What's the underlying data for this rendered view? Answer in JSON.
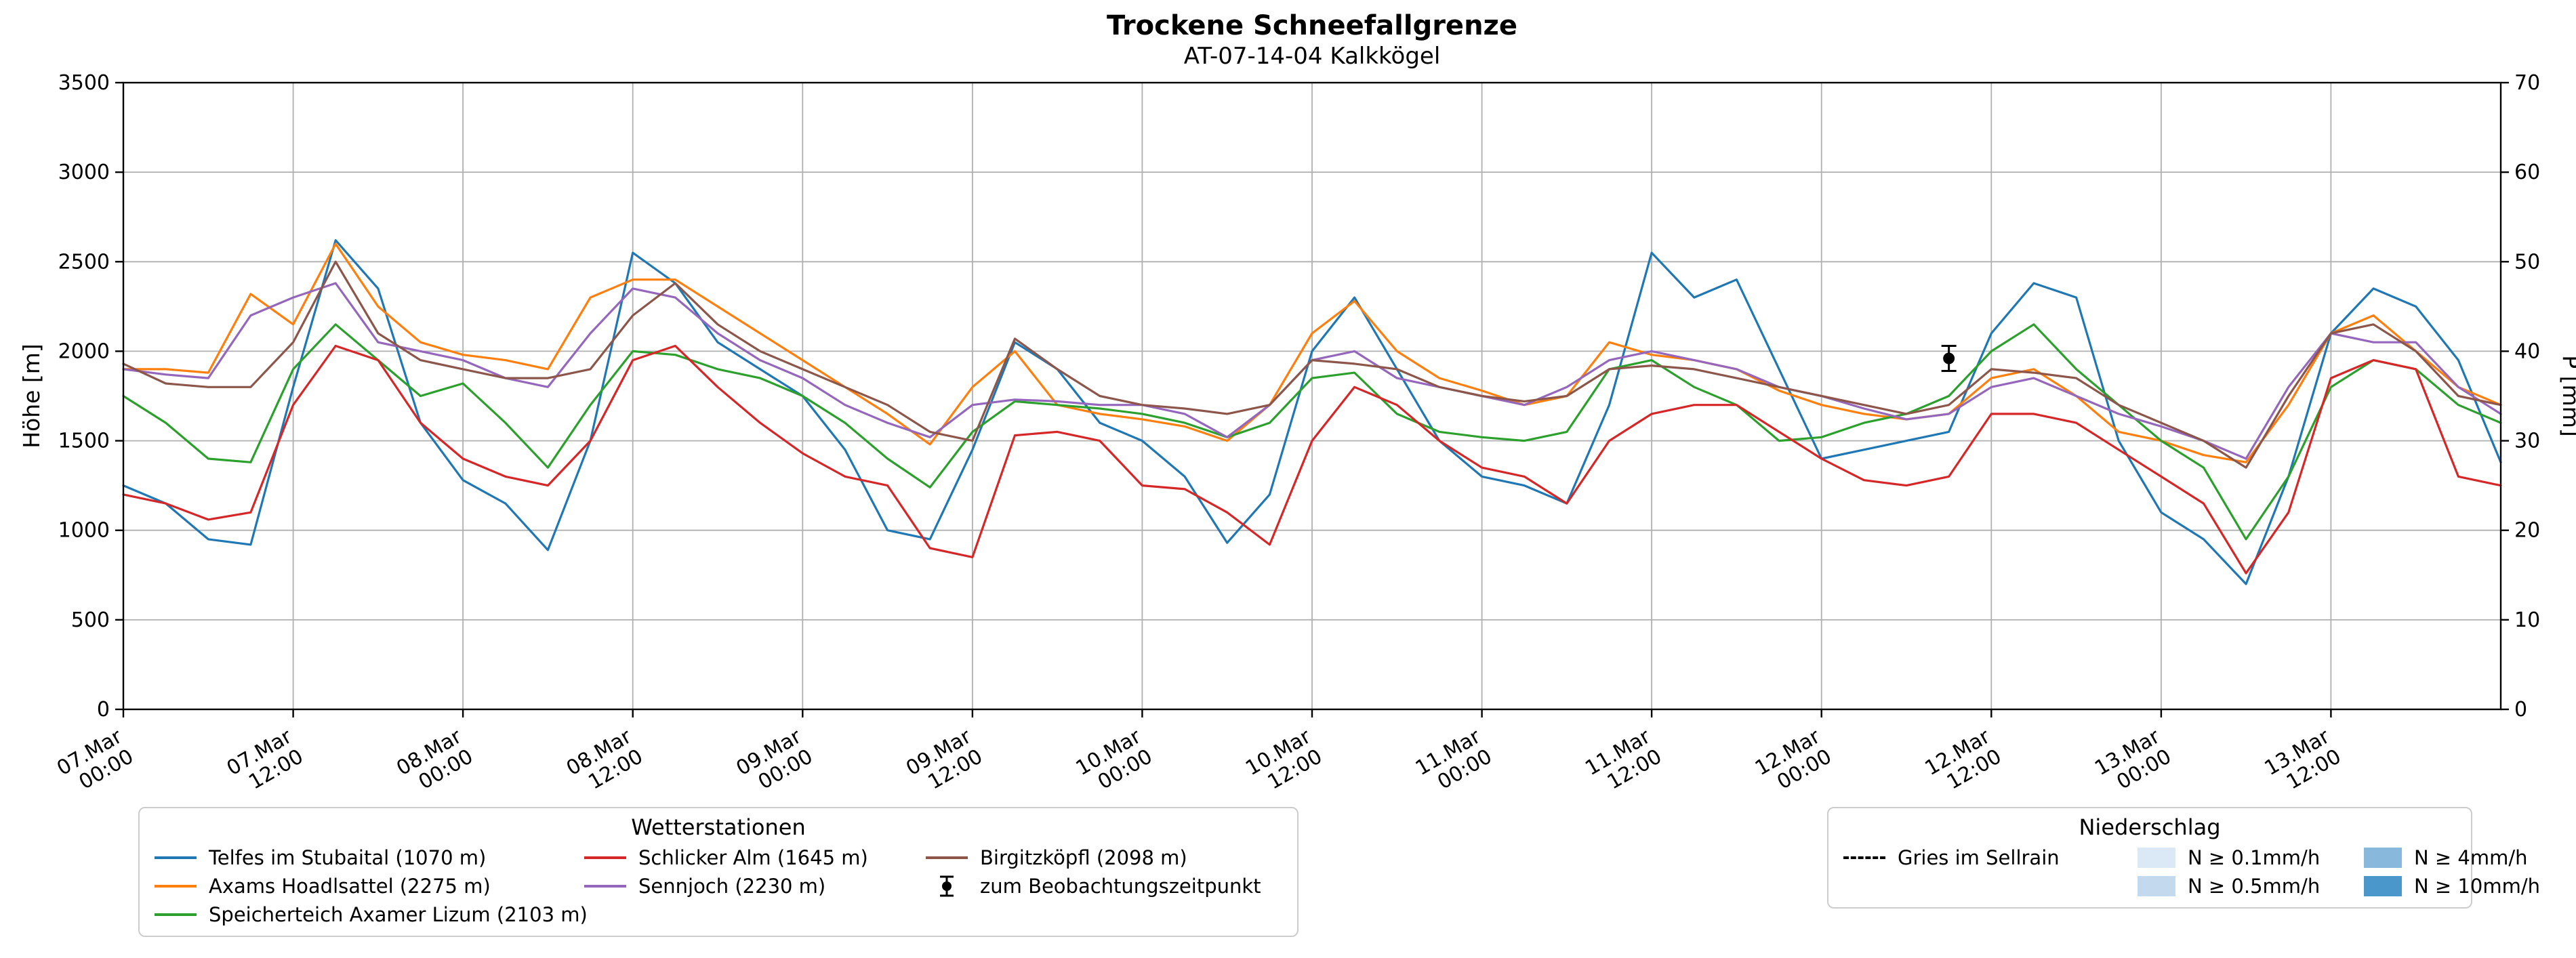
{
  "header": {
    "title": "Trockene Schneefallgrenze",
    "subtitle": "AT-07-14-04 Kalkkögel"
  },
  "chart_data": {
    "type": "line",
    "title": "Trockene Schneefallgrenze",
    "subtitle": "AT-07-14-04 Kalkkögel",
    "grid": true,
    "x_axis": {
      "unit": "hours since 07.Mar 00:00",
      "range": [
        0,
        168
      ],
      "ticks": [
        {
          "t": 0,
          "date": "07.Mar",
          "time": "00:00"
        },
        {
          "t": 12,
          "date": "07.Mar",
          "time": "12:00"
        },
        {
          "t": 24,
          "date": "08.Mar",
          "time": "00:00"
        },
        {
          "t": 36,
          "date": "08.Mar",
          "time": "12:00"
        },
        {
          "t": 48,
          "date": "09.Mar",
          "time": "00:00"
        },
        {
          "t": 60,
          "date": "09.Mar",
          "time": "12:00"
        },
        {
          "t": 72,
          "date": "10.Mar",
          "time": "00:00"
        },
        {
          "t": 84,
          "date": "10.Mar",
          "time": "12:00"
        },
        {
          "t": 96,
          "date": "11.Mar",
          "time": "00:00"
        },
        {
          "t": 108,
          "date": "11.Mar",
          "time": "12:00"
        },
        {
          "t": 120,
          "date": "12.Mar",
          "time": "00:00"
        },
        {
          "t": 132,
          "date": "12.Mar",
          "time": "12:00"
        },
        {
          "t": 144,
          "date": "13.Mar",
          "time": "00:00"
        },
        {
          "t": 156,
          "date": "13.Mar",
          "time": "12:00"
        }
      ]
    },
    "y_left": {
      "label": "Höhe [m]",
      "range": [
        0,
        3500
      ],
      "ticks": [
        0,
        500,
        1000,
        1500,
        2000,
        2500,
        3000,
        3500
      ]
    },
    "y_right": {
      "label": "P [mm]",
      "range": [
        0,
        70
      ],
      "ticks": [
        0,
        10,
        20,
        30,
        40,
        50,
        60,
        70
      ]
    },
    "x_hours": [
      0,
      3,
      6,
      9,
      12,
      15,
      18,
      21,
      24,
      27,
      30,
      33,
      36,
      39,
      42,
      45,
      48,
      51,
      54,
      57,
      60,
      63,
      66,
      69,
      72,
      75,
      78,
      81,
      84,
      87,
      90,
      93,
      96,
      99,
      102,
      105,
      108,
      111,
      114,
      117,
      120,
      123,
      126,
      129,
      132,
      135,
      138,
      141,
      144,
      147,
      150,
      153,
      156,
      159,
      162,
      165,
      168
    ],
    "series": [
      {
        "id": "telfes",
        "name": "Telfes im Stubaital (1070 m)",
        "color": "#1f77b4",
        "values": [
          1250,
          1150,
          950,
          920,
          1800,
          2620,
          2350,
          1600,
          1280,
          1150,
          890,
          1500,
          2550,
          2380,
          2050,
          1900,
          1750,
          1450,
          1000,
          950,
          1450,
          2050,
          1900,
          1600,
          1500,
          1300,
          930,
          1200,
          2000,
          2300,
          1900,
          1500,
          1300,
          1250,
          1150,
          1700,
          2550,
          2300,
          2400,
          1900,
          1400,
          1450,
          1500,
          1550,
          2100,
          2380,
          2300,
          1500,
          1100,
          950,
          700,
          1300,
          2100,
          2350,
          2250,
          1950,
          1380
        ]
      },
      {
        "id": "axams",
        "name": "Axams Hoadlsattel (2275 m)",
        "color": "#ff7f0e",
        "values": [
          1900,
          1900,
          1880,
          2320,
          2150,
          2600,
          2250,
          2050,
          1980,
          1950,
          1900,
          2300,
          2400,
          2400,
          2250,
          2100,
          1950,
          1800,
          1650,
          1480,
          1800,
          2000,
          1700,
          1650,
          1620,
          1580,
          1500,
          1700,
          2100,
          2280,
          2000,
          1850,
          1780,
          1700,
          1750,
          2050,
          1980,
          1950,
          1900,
          1780,
          1700,
          1650,
          1620,
          1650,
          1850,
          1900,
          1750,
          1550,
          1500,
          1420,
          1380,
          1700,
          2100,
          2200,
          2000,
          1800,
          1700
        ]
      },
      {
        "id": "speicherteich",
        "name": "Speicherteich Axamer Lizum (2103 m)",
        "color": "#2ca02c",
        "values": [
          1750,
          1600,
          1400,
          1380,
          1900,
          2150,
          1950,
          1750,
          1820,
          1600,
          1350,
          1700,
          2000,
          1980,
          1900,
          1850,
          1750,
          1600,
          1400,
          1240,
          1550,
          1720,
          1700,
          1680,
          1650,
          1600,
          1520,
          1600,
          1850,
          1880,
          1650,
          1550,
          1520,
          1500,
          1550,
          1900,
          1950,
          1800,
          1700,
          1500,
          1520,
          1600,
          1650,
          1750,
          2000,
          2150,
          1900,
          1700,
          1500,
          1350,
          950,
          1300,
          1800,
          1950,
          1900,
          1700,
          1600
        ]
      },
      {
        "id": "schlicker",
        "name": "Schlicker Alm (1645 m)",
        "color": "#d62728",
        "values": [
          1200,
          1150,
          1060,
          1100,
          1700,
          2030,
          1950,
          1600,
          1400,
          1300,
          1250,
          1500,
          1950,
          2030,
          1800,
          1600,
          1430,
          1300,
          1250,
          900,
          850,
          1530,
          1550,
          1500,
          1250,
          1230,
          1100,
          920,
          1500,
          1800,
          1700,
          1500,
          1350,
          1300,
          1150,
          1500,
          1650,
          1700,
          1700,
          1550,
          1400,
          1280,
          1250,
          1300,
          1650,
          1650,
          1600,
          1450,
          1300,
          1150,
          760,
          1100,
          1850,
          1950,
          1900,
          1300,
          1250
        ]
      },
      {
        "id": "sennjoch",
        "name": "Sennjoch (2230 m)",
        "color": "#9467bd",
        "values": [
          1900,
          1870,
          1850,
          2200,
          2300,
          2380,
          2050,
          2000,
          1950,
          1850,
          1800,
          2100,
          2350,
          2300,
          2100,
          1950,
          1850,
          1700,
          1600,
          1520,
          1700,
          1730,
          1720,
          1700,
          1700,
          1650,
          1520,
          1700,
          1950,
          2000,
          1850,
          1800,
          1750,
          1700,
          1800,
          1950,
          2000,
          1950,
          1900,
          1800,
          1750,
          1680,
          1620,
          1650,
          1800,
          1850,
          1750,
          1650,
          1580,
          1500,
          1400,
          1800,
          2100,
          2050,
          2050,
          1800,
          1650
        ]
      },
      {
        "id": "birgitzkoepfl",
        "name": "Birgitzköpfl (2098 m)",
        "color": "#8c564b",
        "values": [
          1930,
          1820,
          1800,
          1800,
          2050,
          2500,
          2100,
          1950,
          1900,
          1850,
          1850,
          1900,
          2200,
          2380,
          2150,
          2000,
          1900,
          1800,
          1700,
          1550,
          1500,
          2070,
          1900,
          1750,
          1700,
          1680,
          1650,
          1700,
          1950,
          1930,
          1900,
          1800,
          1750,
          1720,
          1750,
          1900,
          1920,
          1900,
          1850,
          1800,
          1750,
          1700,
          1650,
          1700,
          1900,
          1880,
          1850,
          1700,
          1600,
          1500,
          1350,
          1750,
          2100,
          2150,
          2000,
          1750,
          1700
        ]
      }
    ],
    "observation": {
      "label": "zum Beobachtungszeitpunkt",
      "t_hours": 129,
      "value_m": 1960,
      "error_m": 70,
      "color": "#000000"
    }
  },
  "legends": {
    "stations": {
      "title": "Wetterstationen"
    },
    "precip": {
      "title": "Niederschlag",
      "line_item": {
        "label": "Gries im Sellrain",
        "style": "dashed",
        "color": "#000000"
      },
      "levels": [
        {
          "label": "N ≥ 0.1mm/h",
          "color": "#dbe9f6"
        },
        {
          "label": "N ≥ 0.5mm/h",
          "color": "#c3d9ee"
        },
        {
          "label": "N ≥ 4mm/h",
          "color": "#88b8dc"
        },
        {
          "label": "N ≥ 10mm/h",
          "color": "#4a97cc"
        }
      ]
    }
  }
}
